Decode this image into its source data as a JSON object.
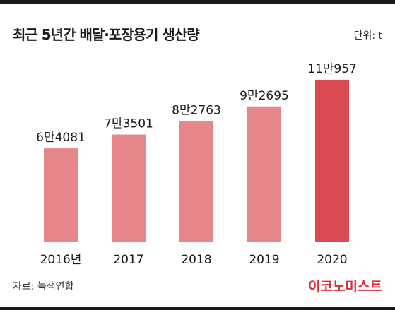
{
  "header": {
    "title": "최근 5년간 배달·포장용기 생산량",
    "unit": "단위: t"
  },
  "footer": {
    "source": "자료: 녹색연합",
    "brand": "이코노미스트"
  },
  "colors": {
    "bar": "#e5868a",
    "highlight_bar": "#d94a52",
    "brand": "#d62f3a",
    "rule": "#1a1a1a"
  },
  "chart_data": {
    "type": "bar",
    "categories": [
      "2016년",
      "2017",
      "2018",
      "2019",
      "2020"
    ],
    "values": [
      64081,
      73501,
      82763,
      92695,
      110957
    ],
    "value_labels": [
      "6만4081",
      "7만3501",
      "8만2763",
      "9만2695",
      "11만957"
    ],
    "highlight_index": 4,
    "title": "최근 5년간 배달·포장용기 생산량",
    "unit": "t",
    "ylim": [
      0,
      122000
    ],
    "grid": false,
    "legend": "none"
  }
}
